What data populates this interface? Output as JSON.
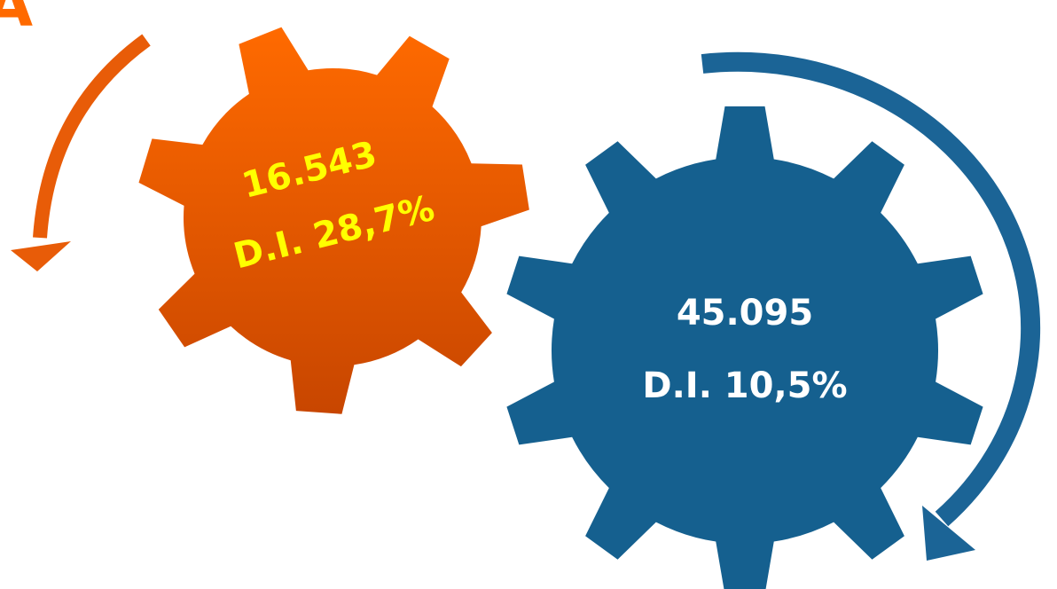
{
  "corner_label": "A",
  "gears": [
    {
      "value": "16.543",
      "label": "D.I. 28,7%"
    },
    {
      "value": "45.095",
      "label": "D.I. 10,5%"
    }
  ]
}
